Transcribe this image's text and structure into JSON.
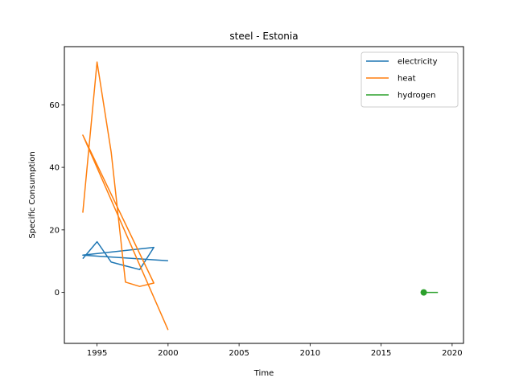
{
  "chart_data": {
    "type": "line",
    "title": "steel - Estonia",
    "xlabel": "Time",
    "ylabel": "Specific Consumption",
    "xlim": [
      1992.7,
      2020.8
    ],
    "ylim": [
      -16.3,
      78.6
    ],
    "xticks": [
      1995,
      2000,
      2005,
      2010,
      2015,
      2020
    ],
    "yticks": [
      0,
      20,
      40,
      60
    ],
    "grid": false,
    "legend_position": "top-right",
    "series": [
      {
        "name": "electricity",
        "color": "#1f77b4",
        "marker": false,
        "points": [
          [
            1994,
            10.8
          ],
          [
            1995,
            16.2
          ],
          [
            1996,
            9.7
          ],
          [
            1997,
            8.5
          ],
          [
            1998,
            7.3
          ],
          [
            1999,
            14.4
          ],
          [
            1994,
            11.9
          ],
          [
            2000,
            10.1
          ]
        ]
      },
      {
        "name": "heat",
        "color": "#ff7f0e",
        "marker": false,
        "points": [
          [
            1994,
            25.5
          ],
          [
            1995,
            73.7
          ],
          [
            1996,
            44.8
          ],
          [
            1997,
            3.3
          ],
          [
            1998,
            1.9
          ],
          [
            1999,
            3.0
          ],
          [
            1994,
            50.3
          ],
          [
            2000,
            -12.0
          ]
        ]
      },
      {
        "name": "hydrogen",
        "color": "#2ca02c",
        "marker": true,
        "points": [
          [
            2018,
            0.0
          ],
          [
            2019,
            0.0
          ]
        ]
      }
    ]
  }
}
